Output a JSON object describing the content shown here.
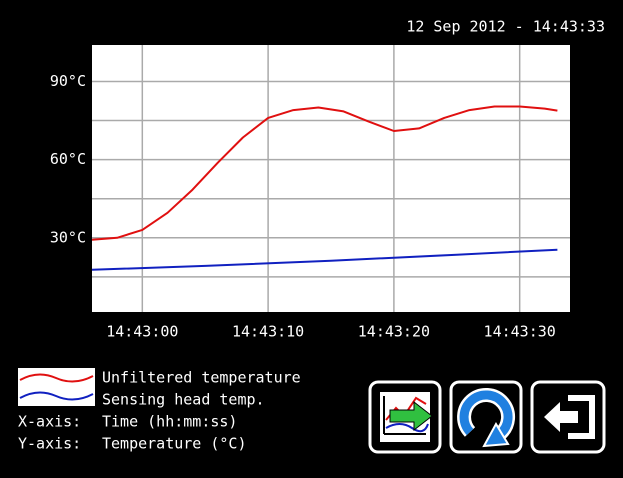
{
  "datetime": "12 Sep 2012 - 14:43:33",
  "chart_data": {
    "type": "line",
    "ylim": [
      1.5,
      104
    ],
    "yticks": [
      {
        "value": 30,
        "label": "30°C"
      },
      {
        "value": 60,
        "label": "60°C"
      },
      {
        "value": 90,
        "label": "90°C"
      }
    ],
    "minor_yticks": [
      15,
      45,
      75
    ],
    "xlim": [
      "14:42:56",
      "14:43:34"
    ],
    "xticks": [
      "14:43:00",
      "14:43:10",
      "14:43:20",
      "14:43:30"
    ],
    "grid": true,
    "series": [
      {
        "name": "Unfiltered temperature",
        "color": "#e01010",
        "x": [
          "14:42:56",
          "14:42:58",
          "14:43:00",
          "14:43:02",
          "14:43:04",
          "14:43:06",
          "14:43:08",
          "14:43:10",
          "14:43:12",
          "14:43:14",
          "14:43:16",
          "14:43:18",
          "14:43:20",
          "14:43:22",
          "14:43:24",
          "14:43:26",
          "14:43:28",
          "14:43:30",
          "14:43:32",
          "14:43:33"
        ],
        "values": [
          29.2,
          30,
          33,
          39.6,
          48.5,
          58.8,
          68.5,
          76,
          79,
          80,
          78.5,
          74.6,
          71,
          72,
          76,
          79,
          80.4,
          80.4,
          79.6,
          78.8
        ]
      },
      {
        "name": "Sensing head temp.",
        "color": "#1020c0",
        "x": [
          "14:42:56",
          "14:43:05",
          "14:43:15",
          "14:43:25",
          "14:43:33"
        ],
        "values": [
          17.7,
          19.2,
          21.2,
          23.5,
          25.4
        ]
      }
    ]
  },
  "axis_info": {
    "x_label": "X-axis:",
    "x_value": "Time (hh:mm:ss)",
    "y_label": "Y-axis:",
    "y_value": "Temperature (°C)"
  }
}
